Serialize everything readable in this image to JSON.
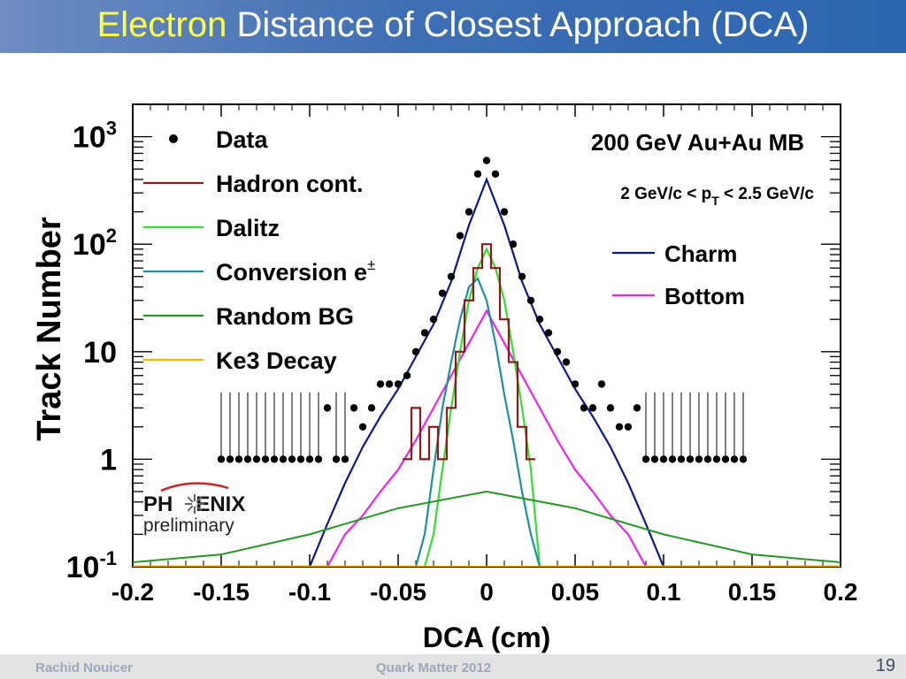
{
  "slide": {
    "title_highlight": "Electron",
    "title_rest": " Distance of Closest Approach (DCA)",
    "title_highlight_color": "#ffff44",
    "footer_left": "Rachid Nouicer",
    "footer_center": "Quark Matter 2012",
    "page_number": "19",
    "phenix_logo": "PH ENIX",
    "preliminary": "preliminary"
  },
  "chart_data": {
    "type": "line",
    "xlabel": "DCA (cm)",
    "ylabel": "Track Number",
    "x_ticks": [
      "-0.2",
      "-0.15",
      "-0.1",
      "-0.05",
      "0",
      "0.05",
      "0.1",
      "0.15",
      "0.2"
    ],
    "y_tick_labels": [
      "10-1",
      "1",
      "10",
      "102",
      "103"
    ],
    "y_scale": "log",
    "xlim": [
      -0.2,
      0.2
    ],
    "ylim": [
      0.1,
      2000
    ],
    "annotations": [
      "200 GeV  Au+Au MB",
      "2 GeV/c < pT < 2.5 GeV/c"
    ],
    "legend_left": [
      "Data",
      "Hadron cont.",
      "Dalitz",
      "Conversion e±",
      "Random BG",
      "Ke3 Decay"
    ],
    "legend_right": [
      "Charm",
      "Bottom"
    ],
    "colors": {
      "data": "#000000",
      "hadron": "#8b1a1a",
      "dalitz": "#33dd33",
      "conversion": "#1d8f9f",
      "random": "#229922",
      "ke3": "#f2b600",
      "charm": "#0a1a8c",
      "bottom": "#ee22ee"
    },
    "data_points": {
      "x": [
        -0.15,
        -0.145,
        -0.14,
        -0.135,
        -0.13,
        -0.125,
        -0.12,
        -0.115,
        -0.11,
        -0.105,
        -0.1,
        -0.095,
        -0.09,
        -0.085,
        -0.08,
        -0.075,
        -0.07,
        -0.065,
        -0.06,
        -0.055,
        -0.05,
        -0.045,
        -0.04,
        -0.035,
        -0.03,
        -0.025,
        -0.02,
        -0.015,
        -0.01,
        -0.005,
        0,
        0.005,
        0.01,
        0.015,
        0.02,
        0.025,
        0.03,
        0.035,
        0.04,
        0.045,
        0.05,
        0.055,
        0.06,
        0.065,
        0.07,
        0.075,
        0.08,
        0.085,
        0.09,
        0.095,
        0.1,
        0.105,
        0.11,
        0.115,
        0.12,
        0.125,
        0.13,
        0.135,
        0.14,
        0.145
      ],
      "y": [
        1,
        1,
        1,
        1,
        1,
        1,
        1,
        1,
        1,
        1,
        1,
        1,
        3,
        1,
        1,
        3,
        2,
        3,
        5,
        5,
        5,
        6,
        10,
        15,
        20,
        35,
        50,
        120,
        200,
        450,
        600,
        450,
        200,
        100,
        50,
        30,
        20,
        15,
        10,
        8,
        5,
        3,
        3,
        5,
        3,
        2,
        2,
        3,
        1,
        1,
        1,
        1,
        1,
        1,
        1,
        1,
        1,
        1,
        1,
        1
      ],
      "fill_up_to": 1.2
    },
    "series": [
      {
        "name": "Charm",
        "x": [
          -0.2,
          -0.1,
          -0.09,
          -0.08,
          -0.07,
          -0.06,
          -0.05,
          -0.04,
          -0.03,
          -0.02,
          -0.01,
          0,
          0.01,
          0.02,
          0.03,
          0.04,
          0.05,
          0.06,
          0.07,
          0.08,
          0.09,
          0.1,
          0.2
        ],
        "y": [
          0.1,
          0.1,
          0.25,
          0.6,
          1.3,
          2.5,
          4.5,
          9,
          18,
          45,
          150,
          400,
          150,
          45,
          18,
          9,
          4.5,
          2.5,
          1.3,
          0.6,
          0.25,
          0.1,
          0.1
        ]
      },
      {
        "name": "Bottom",
        "x": [
          -0.2,
          -0.09,
          -0.08,
          -0.07,
          -0.06,
          -0.05,
          -0.04,
          -0.03,
          -0.02,
          -0.01,
          0,
          0.01,
          0.02,
          0.03,
          0.04,
          0.05,
          0.06,
          0.07,
          0.08,
          0.09,
          0.2
        ],
        "y": [
          0.1,
          0.1,
          0.2,
          0.3,
          0.5,
          0.8,
          1.5,
          3,
          6,
          12,
          24,
          12,
          6,
          3,
          1.5,
          0.8,
          0.5,
          0.3,
          0.2,
          0.1,
          0.1
        ]
      },
      {
        "name": "Dalitz",
        "x": [
          -0.2,
          -0.035,
          -0.03,
          -0.025,
          -0.02,
          -0.015,
          -0.01,
          -0.005,
          0,
          0.005,
          0.01,
          0.015,
          0.02,
          0.025,
          0.03,
          0.2
        ],
        "y": [
          0.1,
          0.1,
          0.2,
          0.8,
          3,
          10,
          30,
          60,
          90,
          60,
          30,
          10,
          3,
          0.8,
          0.1,
          0.1
        ]
      },
      {
        "name": "Conversion e±",
        "x": [
          -0.2,
          -0.04,
          -0.035,
          -0.03,
          -0.025,
          -0.02,
          -0.015,
          -0.01,
          -0.005,
          0,
          0.005,
          0.01,
          0.015,
          0.02,
          0.025,
          0.03,
          0.2
        ],
        "y": [
          0.1,
          0.1,
          0.2,
          0.8,
          3,
          8,
          20,
          40,
          48,
          30,
          12,
          4,
          1.5,
          0.5,
          0.2,
          0.1,
          0.1
        ]
      },
      {
        "name": "Random BG",
        "x": [
          -0.2,
          -0.15,
          -0.1,
          -0.05,
          0,
          0.05,
          0.1,
          0.15,
          0.2
        ],
        "y": [
          0.11,
          0.13,
          0.2,
          0.35,
          0.5,
          0.35,
          0.2,
          0.13,
          0.11
        ]
      },
      {
        "name": "Ke3 Decay",
        "x": [
          -0.2,
          0.2
        ],
        "y": [
          0.1,
          0.1
        ]
      },
      {
        "name": "Hadron cont.",
        "x": [
          -0.045,
          -0.04,
          -0.035,
          -0.03,
          -0.025,
          -0.02,
          -0.015,
          -0.01,
          -0.005,
          0,
          0.005,
          0.01,
          0.015,
          0.02,
          0.025
        ],
        "y": [
          1,
          3,
          1,
          2,
          1,
          3,
          10,
          30,
          60,
          100,
          60,
          20,
          8,
          2,
          1
        ]
      }
    ]
  }
}
